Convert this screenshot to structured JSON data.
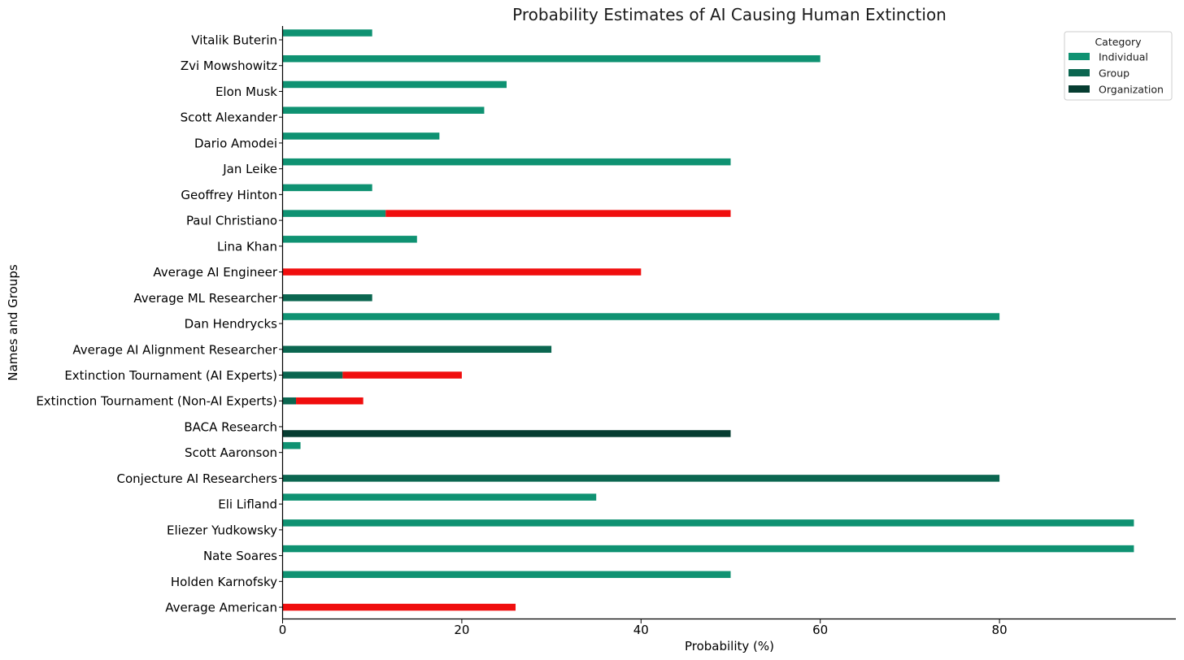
{
  "chart_data": {
    "type": "bar",
    "orientation": "horizontal",
    "title": "Probability Estimates of AI Causing Human Extinction",
    "xlabel": "Probability (%)",
    "ylabel": "Names and Groups",
    "xlim": [
      0,
      100
    ],
    "xticks": [
      0,
      20,
      40,
      60,
      80
    ],
    "grid": false,
    "legend": {
      "title": "Category",
      "placement": "top-right",
      "entries": [
        {
          "name": "Individual",
          "color": "#0f9272"
        },
        {
          "name": "Group",
          "color": "#0b6650"
        },
        {
          "name": "Organization",
          "color": "#063d31"
        }
      ]
    },
    "range_color": "#f00e0e",
    "categories": [
      "Vitalik Buterin",
      "Zvi Mowshowitz",
      "Elon Musk",
      "Scott Alexander",
      "Dario Amodei",
      "Jan Leike",
      "Geoffrey Hinton",
      "Paul Christiano",
      "Lina Khan",
      "Average AI Engineer",
      "Average ML Researcher",
      "Dan Hendrycks",
      "Average AI Alignment Researcher",
      "Extinction Tournament (AI Experts)",
      "Extinction Tournament (Non-AI Experts)",
      "BACA Research",
      "Scott Aaronson",
      "Conjecture AI Researchers",
      "Eli Lifland",
      "Eliezer Yudkowsky",
      "Nate Soares",
      "Holden Karnofsky",
      "Average American"
    ],
    "series": [
      {
        "name": "Individual",
        "values": [
          10,
          60,
          25,
          22.5,
          17.5,
          50,
          10,
          11.5,
          15,
          null,
          null,
          80,
          null,
          null,
          null,
          null,
          2,
          null,
          35,
          95,
          95,
          50,
          null
        ]
      },
      {
        "name": "Group",
        "values": [
          null,
          null,
          null,
          null,
          null,
          null,
          null,
          null,
          null,
          null,
          10,
          null,
          30,
          6.7,
          1.5,
          null,
          null,
          80,
          null,
          null,
          null,
          null,
          null
        ]
      },
      {
        "name": "Organization",
        "values": [
          null,
          null,
          null,
          null,
          null,
          null,
          null,
          null,
          null,
          null,
          null,
          null,
          null,
          null,
          null,
          50,
          null,
          null,
          null,
          null,
          null,
          null,
          null
        ]
      }
    ],
    "ranges": [
      {
        "category": "Paul Christiano",
        "low": 11.5,
        "high": 50
      },
      {
        "category": "Average AI Engineer",
        "low": 0,
        "high": 40
      },
      {
        "category": "Extinction Tournament (AI Experts)",
        "low": 6.7,
        "high": 20
      },
      {
        "category": "Extinction Tournament (Non-AI Experts)",
        "low": 1.5,
        "high": 9
      },
      {
        "category": "Average American",
        "low": 0,
        "high": 26
      }
    ]
  }
}
